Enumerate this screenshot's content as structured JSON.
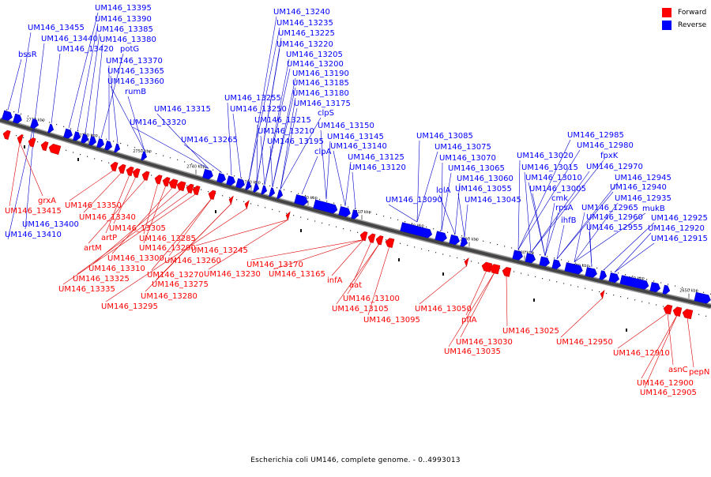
{
  "colors": {
    "forward": "#ff0000",
    "reverse": "#0000ff",
    "axis": "#777777",
    "leader_forward": "#dd0000",
    "leader_reverse": "#0000cc"
  },
  "legend": {
    "forward": "Forward",
    "reverse": "Reverse"
  },
  "caption": "Escherichia coli UM146, complete genome. - 0..4993013",
  "ticks": [
    "2770 kbp",
    "2760 kbp",
    "2750 kbp",
    "2740 kbp",
    "2730 kbp",
    "2720 kbp",
    "2710 kbp",
    "2700 kbp",
    "2690 kbp",
    "2680 kbp",
    "2670 kbp",
    "2660 kbp",
    "2650 kbp"
  ],
  "reverse_labels": [
    "bssR",
    "UM146_13455",
    "UM146_13440",
    "UM146_13420",
    "UM146_13395",
    "UM146_13390",
    "UM146_13385",
    "UM146_13380",
    "potG",
    "UM146_13370",
    "UM146_13365",
    "UM146_13360",
    "rumB",
    "UM146_13315",
    "UM146_13320",
    "UM146_13265",
    "UM146_13255",
    "UM146_13250",
    "UM146_13240",
    "UM146_13235",
    "UM146_13225",
    "UM146_13220",
    "UM146_13205",
    "UM146_13200",
    "UM146_13190",
    "UM146_13185",
    "UM146_13180",
    "UM146_13175",
    "clpS",
    "UM146_13215",
    "UM146_13210",
    "UM146_13195",
    "clpA",
    "UM146_13150",
    "UM146_13145",
    "UM146_13140",
    "UM146_13125",
    "UM146_13120",
    "UM146_13085",
    "UM146_13075",
    "UM146_13070",
    "UM146_13065",
    "UM146_13060",
    "lolA",
    "UM146_13055",
    "UM146_13090",
    "UM146_13045",
    "UM146_12985",
    "UM146_12980",
    "UM146_13020",
    "fpxK",
    "UM146_12970",
    "UM146_13015",
    "UM146_13010",
    "UM146_12945",
    "UM146_13005",
    "UM146_12940",
    "cmk",
    "UM146_12935",
    "rpsA",
    "UM146_12965",
    "mukB",
    "ihfB",
    "UM146_12960",
    "UM146_12925",
    "UM146_12955",
    "UM146_12920",
    "UM146_12915",
    "UM146_13400",
    "UM146_13410"
  ],
  "forward_labels": [
    "grxA",
    "UM146_13415",
    "UM146_13350",
    "UM146_13340",
    "artP",
    "UM146_13305",
    "artM",
    "UM146_13285",
    "UM146_13290",
    "UM146_13300",
    "UM146_13310",
    "UM146_13325",
    "UM146_13335",
    "UM146_13260",
    "UM146_13270",
    "UM146_13275",
    "UM146_13280",
    "UM146_13295",
    "UM146_13245",
    "UM146_13230",
    "UM146_13170",
    "UM146_13165",
    "infA",
    "aat",
    "UM146_13100",
    "UM146_13105",
    "UM146_13095",
    "UM146_13050",
    "pflA",
    "UM146_13030",
    "UM146_13035",
    "UM146_13025",
    "UM146_12950",
    "UM146_12910",
    "asnC",
    "UM146_12900",
    "UM146_12905",
    "pepN"
  ]
}
